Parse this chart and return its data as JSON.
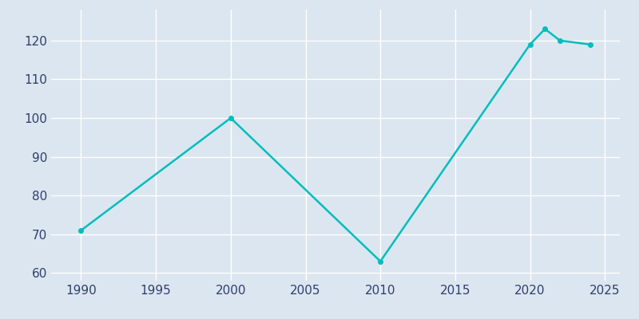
{
  "years": [
    1990,
    2000,
    2010,
    2020,
    2021,
    2022,
    2024
  ],
  "population": [
    71,
    100,
    63,
    119,
    123,
    120,
    119
  ],
  "line_color": "#00BEBE",
  "marker": "o",
  "marker_size": 4,
  "linewidth": 1.8,
  "xlim": [
    1988,
    2026
  ],
  "ylim": [
    58,
    128
  ],
  "xticks": [
    1990,
    1995,
    2000,
    2005,
    2010,
    2015,
    2020,
    2025
  ],
  "yticks": [
    60,
    70,
    80,
    90,
    100,
    110,
    120
  ],
  "axes_bg_color": "#dce6f0",
  "fig_bg_color": "#dce6f0",
  "grid_color": "#ffffff",
  "tick_label_color": "#2f3e6e",
  "tick_fontsize": 11
}
